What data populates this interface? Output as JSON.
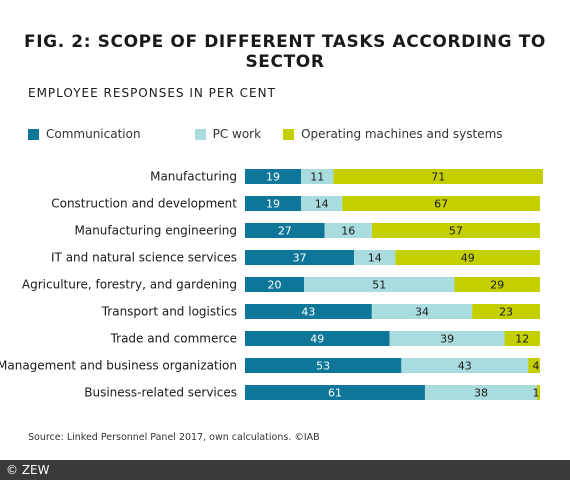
{
  "header": {
    "title": "FIG. 2: SCOPE OF DIFFERENT TASKS ACCORDING TO SECTOR",
    "subtitle": "EMPLOYEE RESPONSES IN PER CENT"
  },
  "legend": [
    {
      "label": "Communication",
      "color": "#0e7799"
    },
    {
      "label": "PC work",
      "color": "#a9dcdf"
    },
    {
      "label": "Operating machines and systems",
      "color": "#c4cf00"
    }
  ],
  "chart_data": {
    "type": "bar",
    "orientation": "horizontal",
    "stacked": true,
    "title": "FIG. 2: SCOPE OF DIFFERENT TASKS ACCORDING TO SECTOR",
    "subtitle": "EMPLOYEE RESPONSES IN PER CENT",
    "legend_position": "top-left",
    "grid": false,
    "xlim": [
      0,
      100
    ],
    "categories": [
      "Manufacturing",
      "Construction and development",
      "Manufacturing engineering",
      "IT and natural science services",
      "Agriculture, forestry, and gardening",
      "Transport and logistics",
      "Trade and commerce",
      "Management and business organization",
      "Business-related services"
    ],
    "series": [
      {
        "name": "Communication",
        "color": "#0e7799",
        "label_color": "#ffffff",
        "values": [
          19,
          19,
          27,
          37,
          20,
          43,
          49,
          53,
          61
        ]
      },
      {
        "name": "PC work",
        "color": "#a9dcdf",
        "label_color": "#1a1a1a",
        "values": [
          11,
          14,
          16,
          14,
          51,
          34,
          39,
          43,
          38
        ]
      },
      {
        "name": "Operating machines and systems",
        "color": "#c4cf00",
        "label_color": "#1a1a1a",
        "values": [
          71,
          67,
          57,
          49,
          29,
          23,
          12,
          4,
          1
        ]
      }
    ]
  },
  "source": "Source: Linked Personnel Panel 2017, own calculations. ©IAB",
  "footer": {
    "copyright": "© ZEW"
  }
}
